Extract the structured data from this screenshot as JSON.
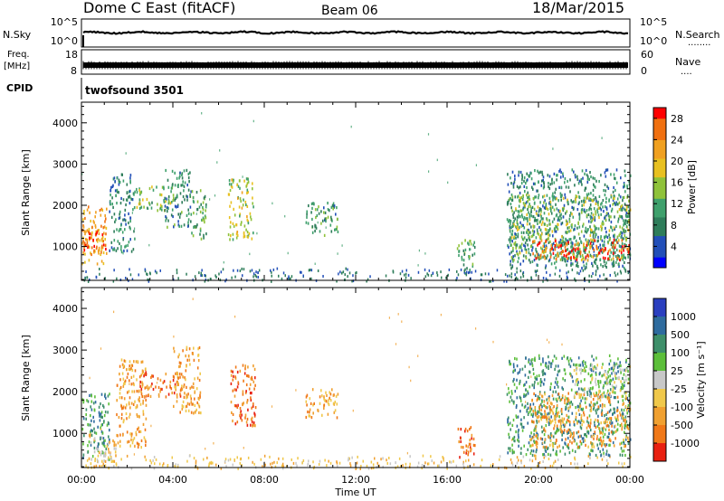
{
  "header": {
    "station": "Dome C East (fitACF)",
    "beam": "Beam 06",
    "date": "18/Mar/2015"
  },
  "status_panels": {
    "nsky_label": "N.Sky",
    "nsearch_label": "N.Search",
    "nsearch_dots": "........",
    "left_ticks_top": [
      "10^5",
      "10^0"
    ],
    "right_ticks_top": [
      "10^5",
      "10^0"
    ],
    "freq_label": "Freq.",
    "freq_unit": "[MHz]",
    "freq_ticks": [
      "18",
      "8"
    ],
    "nave_label": "Nave",
    "nave_dots": "....",
    "nave_ticks": [
      "60",
      "0"
    ],
    "cpid_label": "CPID",
    "cpid_value": "twofsound 3501"
  },
  "colors": {
    "power_scale": [
      "#0000ff",
      "#224fb8",
      "#2e7d5a",
      "#3fa06c",
      "#8fc23a",
      "#e8c020",
      "#f0a020",
      "#f07010",
      "#ff0000"
    ],
    "velocity_scale": [
      "#2a3fbf",
      "#2e6b9e",
      "#3e8f6a",
      "#5cbf3a",
      "#c8c8c8",
      "#f0c84a",
      "#f0a030",
      "#f07818",
      "#e82010"
    ],
    "frame": "#000000"
  },
  "chart_data": [
    {
      "type": "heatmap",
      "name": "power",
      "ylabel": "Slant Range [km]",
      "y_ticks": [
        "1000",
        "2000",
        "3000",
        "4000"
      ],
      "x_ticks": [
        "00:00",
        "04:00",
        "08:00",
        "12:00",
        "16:00",
        "20:00",
        "00:00"
      ],
      "xlim_hours": [
        0,
        24
      ],
      "ylim_km": [
        180,
        4500
      ],
      "colorbar": {
        "label": "Power [dB]",
        "ticks": [
          "4",
          "8",
          "12",
          "16",
          "20",
          "24",
          "28"
        ],
        "range": [
          0,
          30
        ]
      },
      "echo_regions": [
        {
          "t0": 0.0,
          "t1": 1.1,
          "r0": 600,
          "r1": 2000,
          "level": 22
        },
        {
          "t0": 0.0,
          "t1": 1.1,
          "r0": 800,
          "r1": 1400,
          "level": 28
        },
        {
          "t0": 1.2,
          "t1": 2.3,
          "r0": 900,
          "r1": 2800,
          "level": 8
        },
        {
          "t0": 2.3,
          "t1": 4.0,
          "r0": 1900,
          "r1": 2500,
          "level": 14
        },
        {
          "t0": 3.6,
          "t1": 4.8,
          "r0": 1500,
          "r1": 2900,
          "level": 9
        },
        {
          "t0": 4.8,
          "t1": 5.5,
          "r0": 1200,
          "r1": 2400,
          "level": 12
        },
        {
          "t0": 6.4,
          "t1": 7.5,
          "r0": 1200,
          "r1": 2700,
          "level": 16
        },
        {
          "t0": 9.7,
          "t1": 11.2,
          "r0": 1300,
          "r1": 2100,
          "level": 10
        },
        {
          "t0": 16.4,
          "t1": 17.2,
          "r0": 450,
          "r1": 1200,
          "level": 12
        },
        {
          "t0": 18.6,
          "t1": 24.0,
          "r0": 500,
          "r1": 2900,
          "level": 8
        },
        {
          "t0": 18.7,
          "t1": 24.0,
          "r0": 700,
          "r1": 2300,
          "level": 14
        },
        {
          "t0": 19.6,
          "t1": 24.0,
          "r0": 700,
          "r1": 1200,
          "level": 27
        }
      ],
      "ground_band": {
        "r0": 180,
        "r1": 500,
        "level": 6
      }
    },
    {
      "type": "heatmap",
      "name": "velocity",
      "ylabel": "Slant Range [km]",
      "xlabel": "Time UT",
      "y_ticks": [
        "1000",
        "2000",
        "3000",
        "4000"
      ],
      "x_ticks": [
        "00:00",
        "04:00",
        "08:00",
        "12:00",
        "16:00",
        "20:00",
        "00:00"
      ],
      "xlim_hours": [
        0,
        24
      ],
      "ylim_km": [
        180,
        4500
      ],
      "colorbar": {
        "label": "Velocity [m s⁻¹]",
        "ticks": [
          "1000",
          "500",
          "100",
          "25",
          "-25",
          "-100",
          "-500",
          "-1000"
        ]
      },
      "echo_regions": [
        {
          "t0": 0.0,
          "t1": 1.2,
          "r0": 400,
          "r1": 2000,
          "level": 2
        },
        {
          "t0": 0.3,
          "t1": 1.5,
          "r0": 200,
          "r1": 1000,
          "level": 5
        },
        {
          "t0": 1.5,
          "t1": 2.8,
          "r0": 700,
          "r1": 2800,
          "level": 6
        },
        {
          "t0": 2.5,
          "t1": 4.5,
          "r0": 1900,
          "r1": 2500,
          "level": 7
        },
        {
          "t0": 4.0,
          "t1": 5.2,
          "r0": 1500,
          "r1": 3100,
          "level": 6
        },
        {
          "t0": 6.5,
          "t1": 7.6,
          "r0": 1200,
          "r1": 2700,
          "level": 7
        },
        {
          "t0": 9.8,
          "t1": 11.2,
          "r0": 1400,
          "r1": 2100,
          "level": 6
        },
        {
          "t0": 16.4,
          "t1": 17.2,
          "r0": 450,
          "r1": 1200,
          "level": 7
        },
        {
          "t0": 18.6,
          "t1": 24.0,
          "r0": 500,
          "r1": 2900,
          "level": 2
        },
        {
          "t0": 19.6,
          "t1": 24.0,
          "r0": 700,
          "r1": 2000,
          "level": 6
        },
        {
          "t0": 21.5,
          "t1": 24.0,
          "r0": 1900,
          "r1": 2700,
          "level": 4
        }
      ],
      "ground_band": {
        "r0": 180,
        "r1": 500,
        "level": 5
      }
    }
  ]
}
